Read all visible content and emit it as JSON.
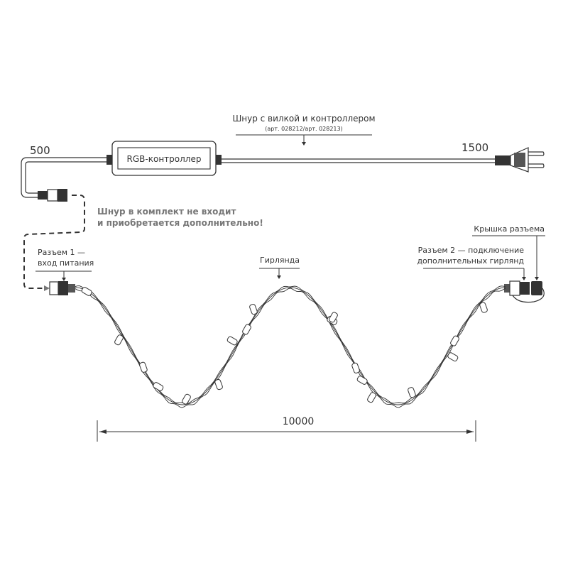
{
  "labels": {
    "cord_title": "Шнур с вилкой и контроллером",
    "cord_articles": "(арт. 028212/арт. 028213)",
    "controller": "RGB-контроллер",
    "len_left": "500",
    "len_right": "1500",
    "note_line1": "Шнур в комплект не входит",
    "note_line2": "и приобретается дополнительно!",
    "connector1_line1": "Разъем 1 —",
    "connector1_line2": "вход питания",
    "garland": "Гирлянда",
    "connector2_line1": "Разъем 2 — подключение",
    "connector2_line2": "дополнительных гирлянд",
    "cap": "Крышка разъема",
    "length_total": "10000"
  },
  "colors": {
    "line": "#333333",
    "note": "#777777"
  }
}
